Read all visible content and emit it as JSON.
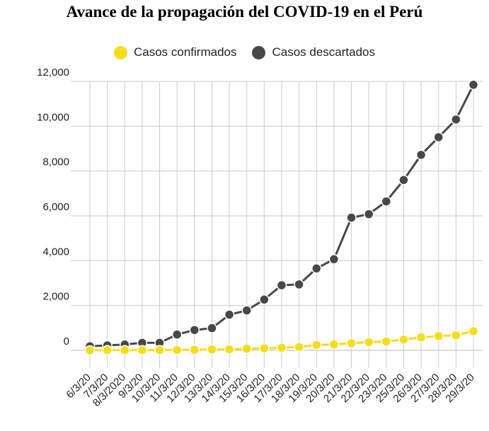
{
  "chart_data": {
    "type": "line",
    "title": "Avance de la propagación del COVID-19 en el Perú",
    "categories": [
      "6/3/20",
      "7/3/20",
      "8/3/2020",
      "9/3/20",
      "10/3/20",
      "11/3/20",
      "12/3/20",
      "13/3/20",
      "14/3/20",
      "15/3/20",
      "16/3/20",
      "17/3/20",
      "18/3/20",
      "19/3/20",
      "20/3/20",
      "21/3/20",
      "22/3/20",
      "23/3/20",
      "25/3/20",
      "26/3/20",
      "27/3/20",
      "28/3/20",
      "29/3/20"
    ],
    "series": [
      {
        "name": "Casos confirmados",
        "color": "#f7dc1a",
        "values": [
          1,
          6,
          7,
          9,
          11,
          17,
          22,
          38,
          43,
          71,
          86,
          117,
          145,
          234,
          263,
          318,
          363,
          395,
          480,
          580,
          635,
          671,
          852
        ]
      },
      {
        "name": "Casos descartados",
        "color": "#484848",
        "values": [
          180,
          220,
          260,
          335,
          335,
          705,
          905,
          990,
          1590,
          1780,
          2265,
          2905,
          2940,
          3655,
          4065,
          5920,
          6075,
          6645,
          7600,
          8720,
          9510,
          10300,
          11850
        ]
      }
    ],
    "yticks": [
      "0",
      "2,000",
      "4,000",
      "6,000",
      "8,000",
      "10,000",
      "12,000"
    ],
    "ylim": [
      -800,
      12000
    ],
    "grid": true,
    "legend_position": "top"
  }
}
